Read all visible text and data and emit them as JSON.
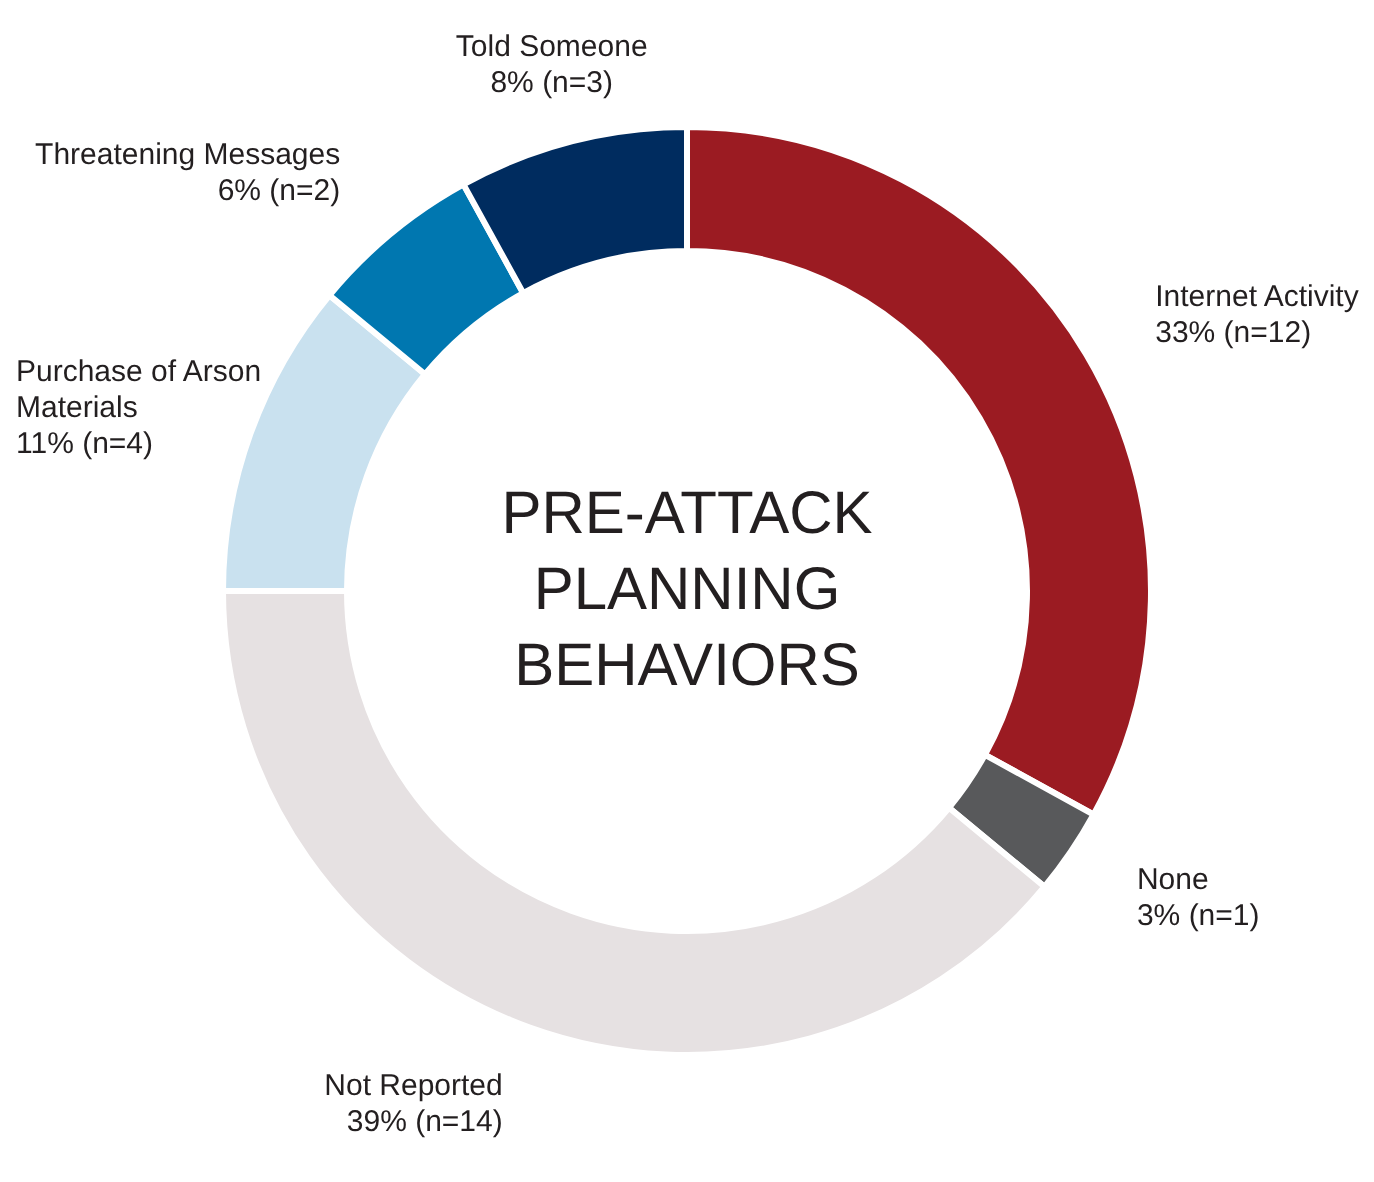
{
  "chart_data": {
    "type": "donut",
    "title": "PRE-ATTACK PLANNING BEHAVIORS",
    "categories": [
      "Internet Activity",
      "None",
      "Not Reported",
      "Purchase of Arson Materials",
      "Threatening Messages",
      "Told Someone"
    ],
    "values": [
      33,
      3,
      39,
      11,
      6,
      8
    ],
    "colors": [
      "#9b1b22",
      "#58595b",
      "#e6e1e2",
      "#c9e1ef",
      "#0077b0",
      "#002c5f"
    ],
    "value_labels": [
      "33% (n=12)",
      "3% (n=1)",
      "39% (n=14)",
      "11% (n=4)",
      "6% (n=2)",
      "8% (n=3)"
    ]
  }
}
